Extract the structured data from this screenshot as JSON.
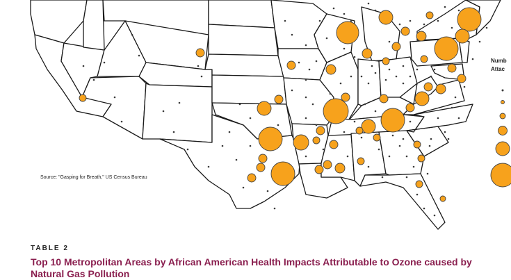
{
  "map": {
    "source": "Source: \"Gasping for Breath,\" US Census Bureau",
    "legend_title_line1": "Numb",
    "legend_title_line2": "Attac",
    "bubble_color": "#f7a21c",
    "dot_color": "#3a3a3a"
  },
  "table": {
    "label": "TABLE 2",
    "title": "Top 10 Metropolitan Areas by African American Health Impacts Attributable to Ozone caused by Natural Gas Pollution",
    "title_color": "#8a1f4f"
  }
}
